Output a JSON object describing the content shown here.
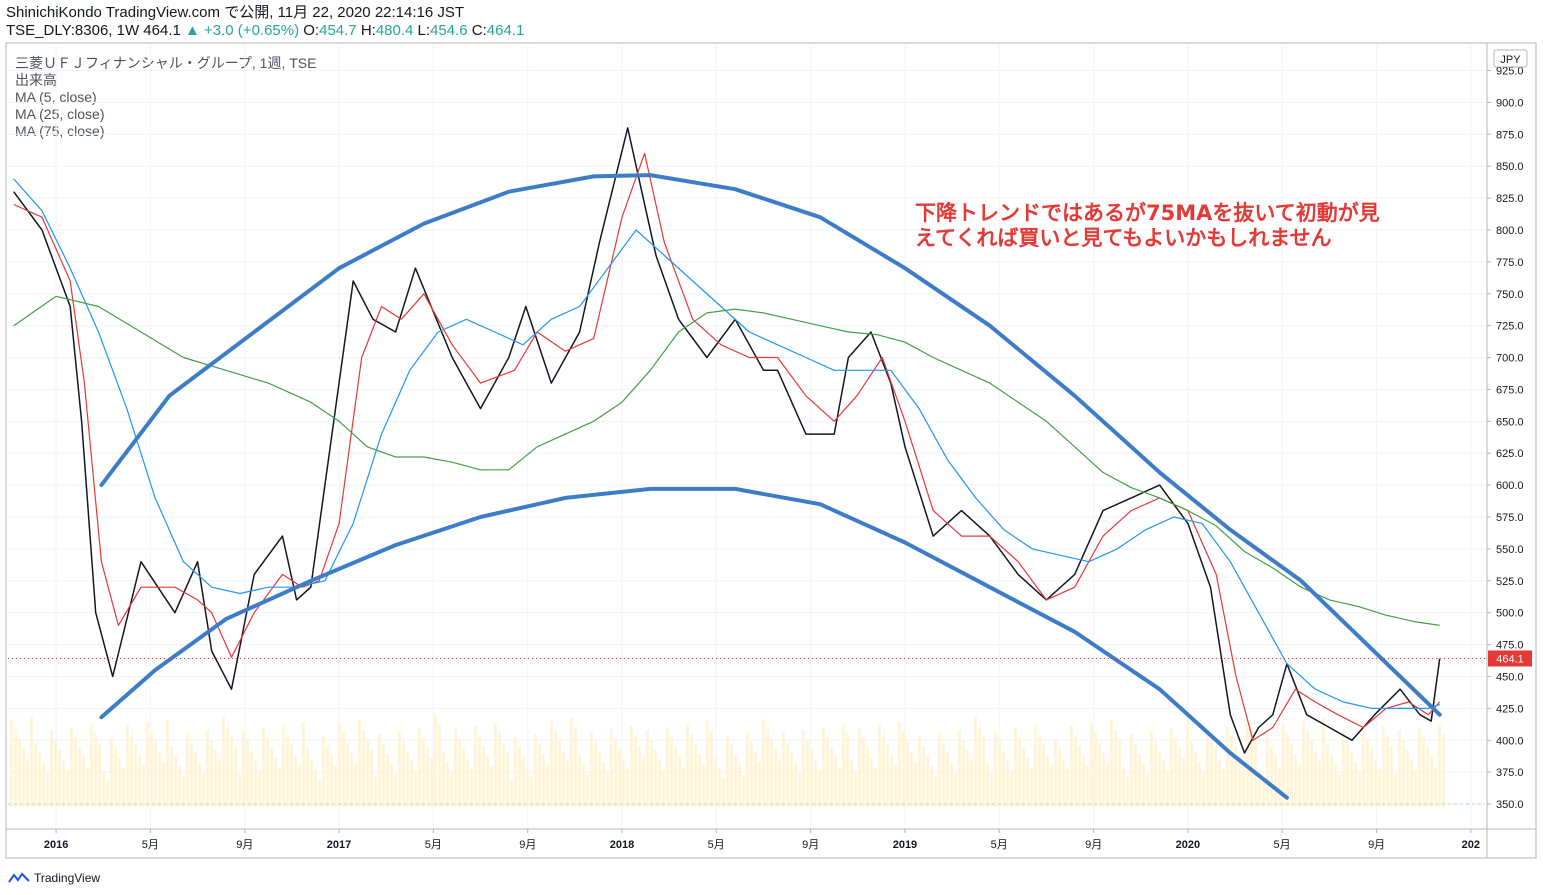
{
  "header": {
    "line1": "ShinichiKondo TradingView.com で公開, 11月 22, 2020 22:14:16 JST",
    "symbol": "TSE_DLY:8306, 1W 464.1",
    "change": "▲ +3.0 (+0.65%)",
    "o_label": "O:",
    "o_value": "454.7",
    "h_label": "H:",
    "h_value": "480.4",
    "l_label": "L:",
    "l_value": "454.6",
    "c_label": "C:",
    "c_value": "464.1"
  },
  "indicators": {
    "title": "三菱ＵＦＪフィナンシャル・グループ, 1週, TSE",
    "volume": "出来高",
    "ma5": "MA (5, close)",
    "ma25": "MA (25, close)",
    "ma75": "MA (75, close)"
  },
  "annotation": {
    "line1": "下降トレンドではあるが75MAを抜いて初動が見",
    "line2": "えてくれば買いと見てもよいかもしれません"
  },
  "footer": {
    "brand": "TradingView"
  },
  "chart_data": {
    "type": "line",
    "currency": "JPY",
    "ylim": [
      332,
      945
    ],
    "y_ticks": [
      350,
      375,
      400,
      425,
      450,
      475,
      500,
      525,
      550,
      575,
      600,
      625,
      650,
      675,
      700,
      725,
      750,
      775,
      800,
      825,
      850,
      875,
      900,
      925
    ],
    "x_tick_labels": [
      "2016",
      "5月",
      "9月",
      "2017",
      "5月",
      "9月",
      "2018",
      "5月",
      "9月",
      "2019",
      "5月",
      "9月",
      "2020",
      "5月",
      "9月",
      "202"
    ],
    "x_tick_years": [
      2016.0,
      2016.333,
      2016.667,
      2017.0,
      2017.333,
      2017.667,
      2018.0,
      2018.333,
      2018.667,
      2019.0,
      2019.333,
      2019.667,
      2020.0,
      2020.333,
      2020.667,
      2021.0
    ],
    "x_range_years": [
      2015.83,
      2021.05
    ],
    "last_price": 464.1,
    "last_price_label": "464.1",
    "series": [
      {
        "name": "price",
        "color": "#131722",
        "x": [
          2015.85,
          2015.95,
          2016.05,
          2016.09,
          2016.14,
          2016.2,
          2016.3,
          2016.42,
          2016.5,
          2016.55,
          2016.62,
          2016.7,
          2016.8,
          2016.85,
          2016.9,
          2016.95,
          2017.05,
          2017.12,
          2017.2,
          2017.27,
          2017.4,
          2017.5,
          2017.6,
          2017.66,
          2017.75,
          2017.85,
          2017.92,
          2018.02,
          2018.07,
          2018.12,
          2018.2,
          2018.3,
          2018.4,
          2018.5,
          2018.55,
          2018.65,
          2018.75,
          2018.8,
          2018.88,
          2018.95,
          2019.0,
          2019.1,
          2019.2,
          2019.3,
          2019.4,
          2019.5,
          2019.6,
          2019.7,
          2019.8,
          2019.9,
          2020.0,
          2020.08,
          2020.15,
          2020.2,
          2020.25,
          2020.3,
          2020.35,
          2020.42,
          2020.5,
          2020.58,
          2020.66,
          2020.75,
          2020.82,
          2020.86,
          2020.89
        ],
        "values": [
          830,
          800,
          740,
          650,
          500,
          450,
          540,
          500,
          540,
          470,
          440,
          530,
          560,
          510,
          520,
          600,
          760,
          730,
          720,
          770,
          700,
          660,
          700,
          740,
          680,
          720,
          790,
          880,
          830,
          780,
          730,
          700,
          730,
          690,
          690,
          640,
          640,
          700,
          720,
          680,
          630,
          560,
          580,
          560,
          530,
          510,
          530,
          580,
          590,
          600,
          570,
          520,
          420,
          390,
          410,
          420,
          460,
          420,
          410,
          400,
          420,
          440,
          420,
          415,
          464
        ]
      },
      {
        "name": "MA 5",
        "color": "#e53935",
        "x": [
          2015.85,
          2015.95,
          2016.05,
          2016.1,
          2016.16,
          2016.22,
          2016.3,
          2016.42,
          2016.5,
          2016.55,
          2016.62,
          2016.7,
          2016.8,
          2016.87,
          2016.93,
          2017.0,
          2017.08,
          2017.15,
          2017.22,
          2017.3,
          2017.4,
          2017.5,
          2017.62,
          2017.7,
          2017.8,
          2017.9,
          2018.0,
          2018.08,
          2018.15,
          2018.25,
          2018.35,
          2018.45,
          2018.55,
          2018.65,
          2018.75,
          2018.83,
          2018.92,
          2019.0,
          2019.1,
          2019.2,
          2019.3,
          2019.4,
          2019.5,
          2019.6,
          2019.7,
          2019.8,
          2019.9,
          2020.0,
          2020.1,
          2020.17,
          2020.23,
          2020.3,
          2020.38,
          2020.45,
          2020.53,
          2020.62,
          2020.7,
          2020.78,
          2020.85,
          2020.89
        ],
        "values": [
          820,
          810,
          760,
          680,
          540,
          490,
          520,
          520,
          510,
          500,
          465,
          500,
          530,
          520,
          525,
          570,
          700,
          740,
          730,
          750,
          710,
          680,
          690,
          720,
          705,
          715,
          810,
          860,
          790,
          730,
          710,
          700,
          700,
          670,
          650,
          670,
          700,
          650,
          580,
          560,
          560,
          540,
          510,
          520,
          560,
          580,
          590,
          580,
          530,
          450,
          400,
          410,
          440,
          430,
          420,
          410,
          425,
          430,
          420,
          430
        ]
      },
      {
        "name": "MA 25",
        "color": "#2196f3",
        "x": [
          2015.85,
          2015.95,
          2016.05,
          2016.15,
          2016.25,
          2016.35,
          2016.45,
          2016.55,
          2016.65,
          2016.75,
          2016.85,
          2016.95,
          2017.05,
          2017.15,
          2017.25,
          2017.35,
          2017.45,
          2017.55,
          2017.65,
          2017.75,
          2017.85,
          2017.95,
          2018.05,
          2018.15,
          2018.25,
          2018.35,
          2018.45,
          2018.55,
          2018.65,
          2018.75,
          2018.85,
          2018.95,
          2019.05,
          2019.15,
          2019.25,
          2019.35,
          2019.45,
          2019.55,
          2019.65,
          2019.75,
          2019.85,
          2019.95,
          2020.05,
          2020.15,
          2020.25,
          2020.35,
          2020.45,
          2020.55,
          2020.65,
          2020.75,
          2020.85,
          2020.89
        ],
        "values": [
          840,
          815,
          770,
          720,
          660,
          590,
          540,
          520,
          515,
          520,
          520,
          525,
          570,
          640,
          690,
          720,
          730,
          720,
          710,
          730,
          740,
          770,
          800,
          780,
          760,
          740,
          720,
          710,
          700,
          690,
          690,
          690,
          660,
          620,
          590,
          565,
          550,
          545,
          540,
          550,
          565,
          575,
          570,
          540,
          500,
          460,
          440,
          430,
          425,
          425,
          425,
          428
        ]
      },
      {
        "name": "MA 75",
        "color": "#43a047",
        "x": [
          2015.85,
          2016.0,
          2016.15,
          2016.3,
          2016.45,
          2016.6,
          2016.75,
          2016.9,
          2017.0,
          2017.1,
          2017.2,
          2017.3,
          2017.4,
          2017.5,
          2017.6,
          2017.7,
          2017.8,
          2017.9,
          2018.0,
          2018.1,
          2018.2,
          2018.3,
          2018.4,
          2018.5,
          2018.6,
          2018.7,
          2018.8,
          2018.9,
          2019.0,
          2019.1,
          2019.2,
          2019.3,
          2019.4,
          2019.5,
          2019.6,
          2019.7,
          2019.8,
          2019.9,
          2020.0,
          2020.1,
          2020.2,
          2020.3,
          2020.4,
          2020.5,
          2020.6,
          2020.7,
          2020.8,
          2020.89
        ],
        "values": [
          725,
          748,
          740,
          720,
          700,
          690,
          680,
          665,
          650,
          630,
          622,
          622,
          618,
          612,
          612,
          630,
          640,
          650,
          665,
          690,
          720,
          735,
          738,
          735,
          730,
          725,
          720,
          718,
          712,
          700,
          690,
          680,
          665,
          650,
          630,
          610,
          598,
          590,
          580,
          568,
          548,
          535,
          520,
          510,
          505,
          498,
          493,
          490
        ]
      }
    ],
    "trend_lines": [
      {
        "name": "upper-arc",
        "x": [
          2016.16,
          2016.4,
          2016.7,
          2017.0,
          2017.3,
          2017.6,
          2017.9,
          2018.1,
          2018.4,
          2018.7,
          2019.0,
          2019.3,
          2019.6,
          2019.9,
          2020.15,
          2020.4,
          2020.89
        ],
        "values": [
          600,
          670,
          720,
          770,
          805,
          830,
          842,
          843,
          832,
          810,
          770,
          725,
          670,
          610,
          565,
          525,
          420
        ]
      },
      {
        "name": "lower-arc",
        "x": [
          2016.16,
          2016.35,
          2016.6,
          2016.9,
          2017.2,
          2017.5,
          2017.8,
          2018.1,
          2018.4,
          2018.7,
          2019.0,
          2019.3,
          2019.6,
          2019.9,
          2020.15,
          2020.35
        ],
        "values": [
          418,
          455,
          495,
          525,
          553,
          575,
          590,
          597,
          597,
          585,
          555,
          520,
          485,
          440,
          390,
          355
        ]
      }
    ]
  }
}
